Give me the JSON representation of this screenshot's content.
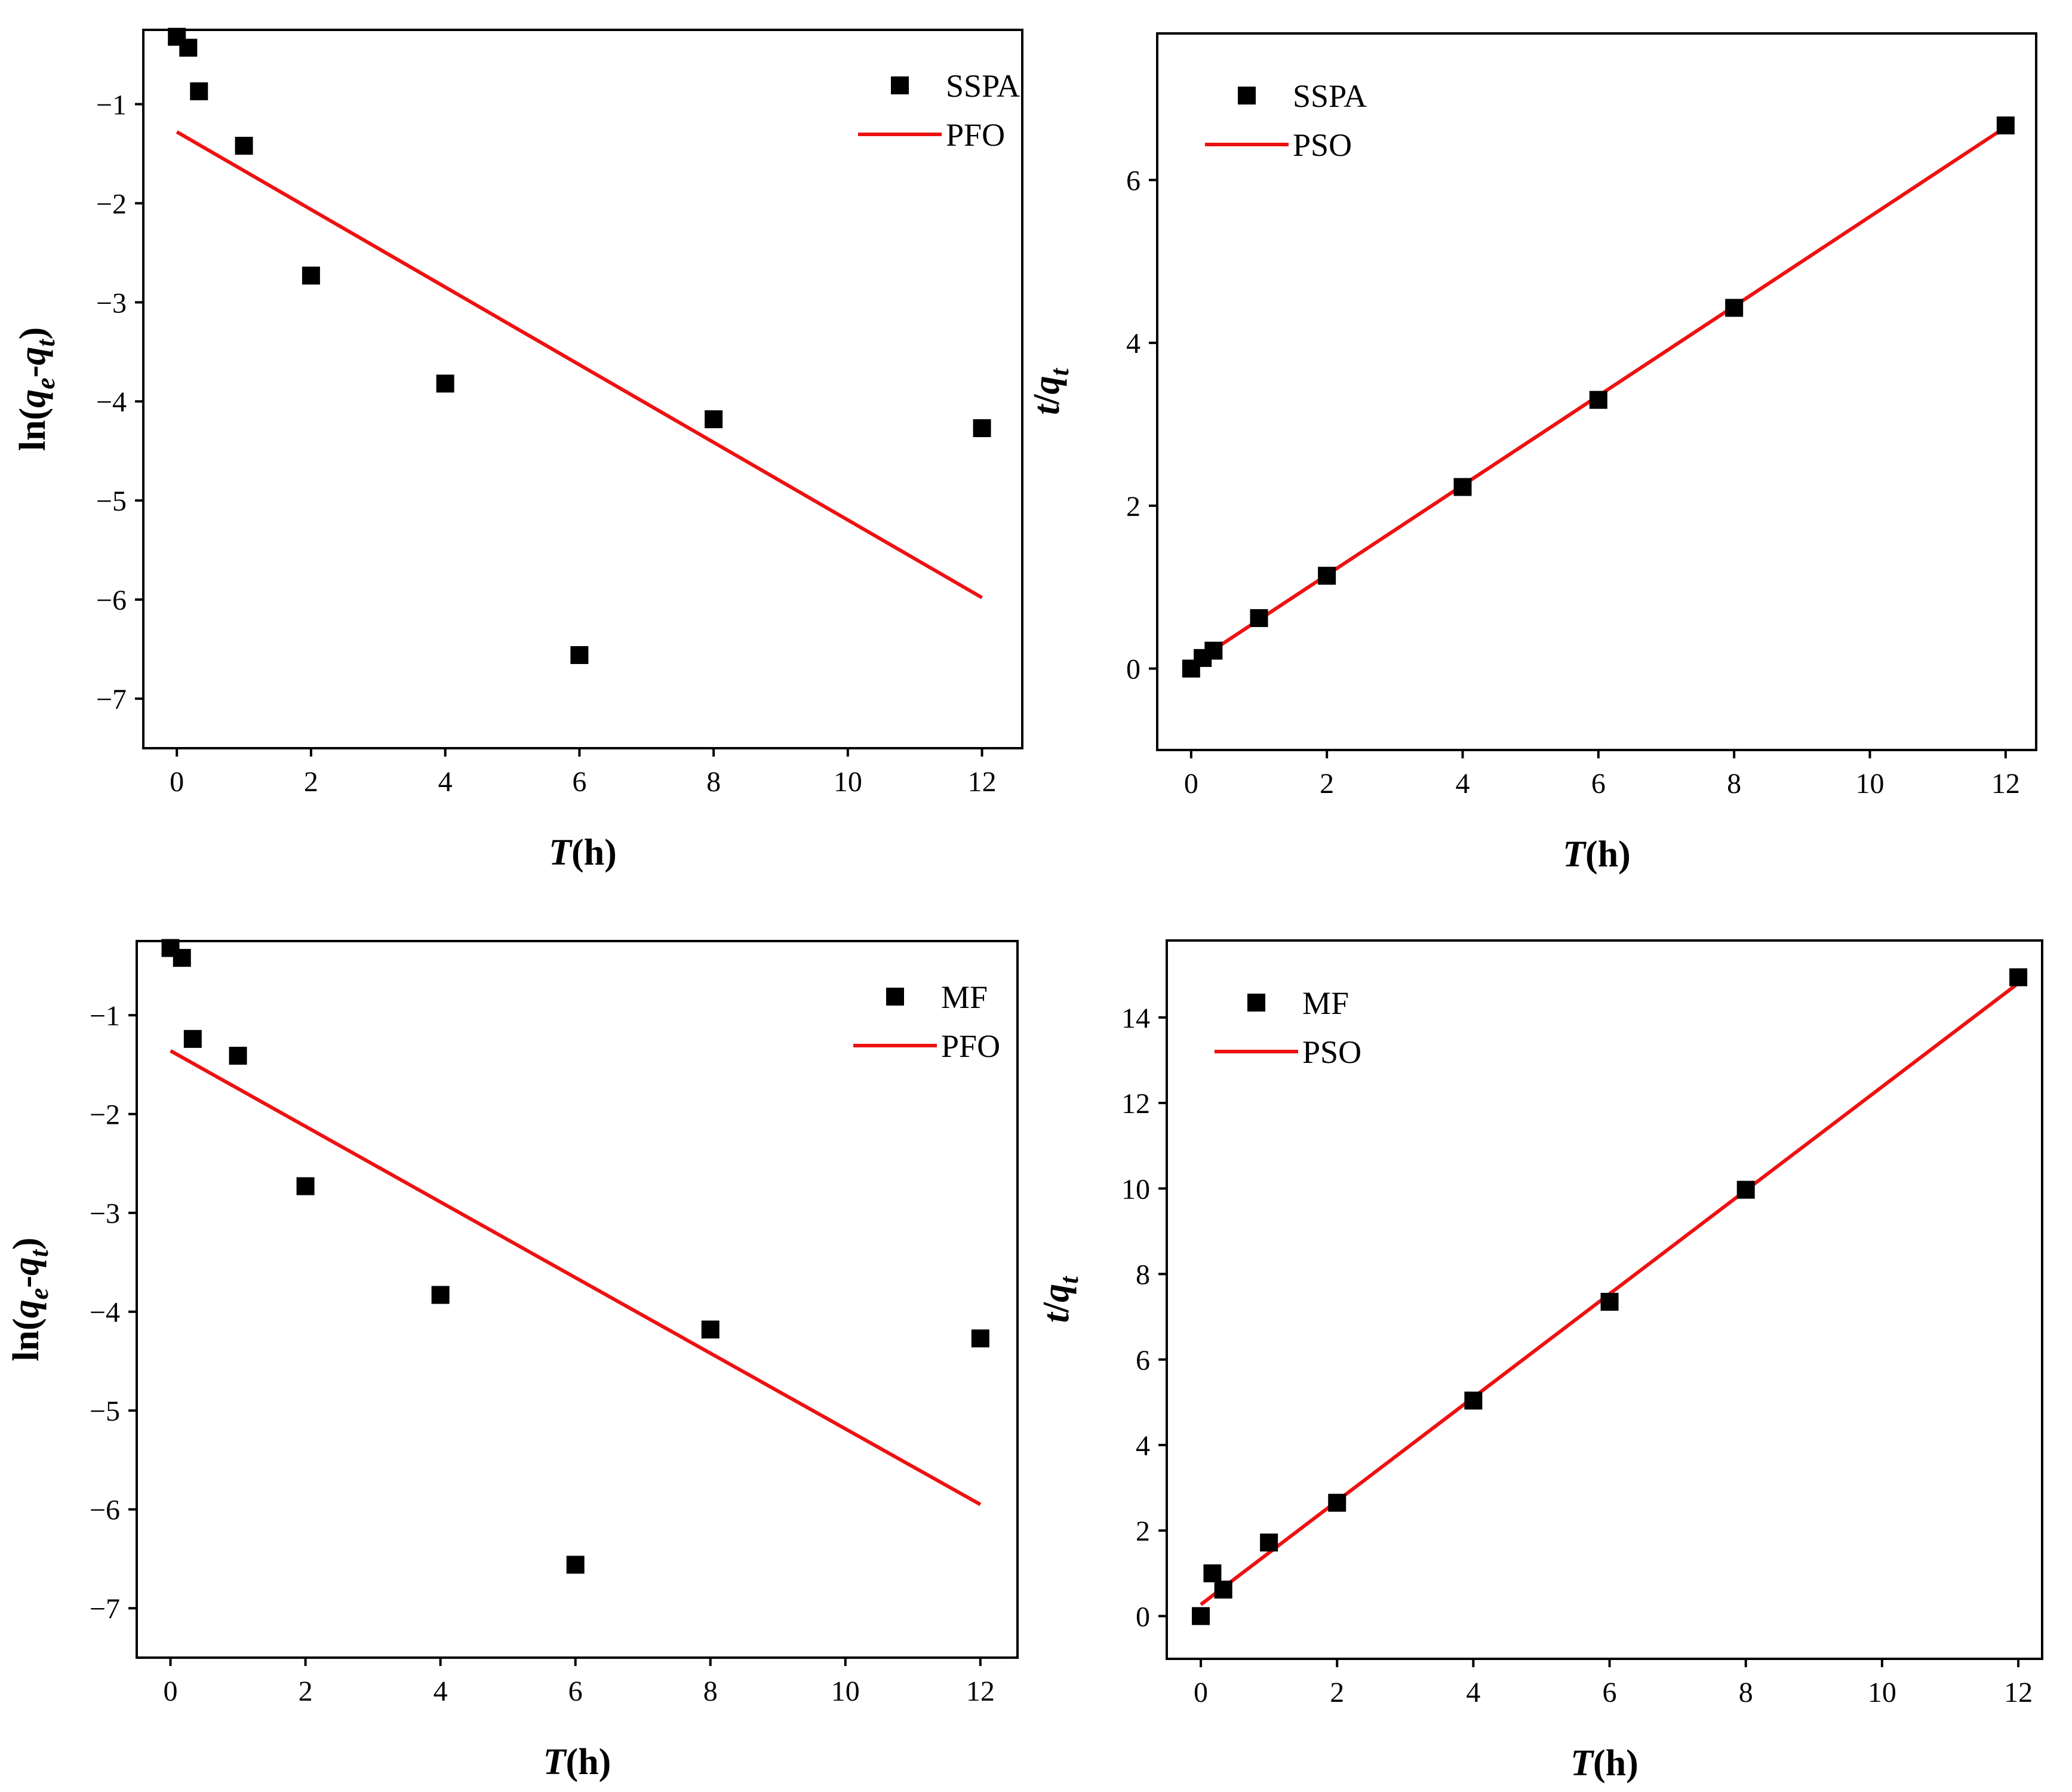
{
  "chart_data": [
    {
      "type": "scatter",
      "position": "top-left",
      "xlabel": {
        "italic": "T",
        "rest": "(h)"
      },
      "ylabel": {
        "prefix": "ln(",
        "q1": "q",
        "s1": "e",
        "dash": "-",
        "q2": "q",
        "s2": "t",
        "suffix": ")"
      },
      "xlim": [
        -0.5,
        12.6
      ],
      "ylim": [
        -7.5,
        -0.25
      ],
      "xticks": [
        0,
        2,
        4,
        6,
        8,
        10,
        12
      ],
      "yticks": [
        -1,
        -2,
        -3,
        -4,
        -5,
        -6,
        -7
      ],
      "ytick_labels": [
        "−1",
        "−2",
        "−3",
        "−4",
        "−5",
        "−6",
        "−7"
      ],
      "points": {
        "name": "SSPA",
        "x": [
          0,
          0.17,
          0.33,
          1,
          2,
          4,
          6,
          8,
          12
        ],
        "y": [
          -0.32,
          -0.43,
          -0.87,
          -1.42,
          -2.73,
          -3.82,
          -6.56,
          -4.18,
          -4.27
        ]
      },
      "fit": {
        "name": "PFO",
        "x": [
          0,
          12
        ],
        "y": [
          -1.28,
          -5.98
        ],
        "color": "#ee1111"
      },
      "legend": {
        "position": "top-right"
      }
    },
    {
      "type": "scatter",
      "position": "top-right",
      "xlabel": {
        "italic": "T",
        "rest": "(h)"
      },
      "ylabel": {
        "q1": "t",
        "slash": "/",
        "q2": "q",
        "s2": "t"
      },
      "xlim": [
        -0.5,
        12.45
      ],
      "ylim": [
        -1.0,
        7.8
      ],
      "xticks": [
        0,
        2,
        4,
        6,
        8,
        10,
        12
      ],
      "yticks": [
        0,
        2,
        4,
        6
      ],
      "ytick_labels": [
        "0",
        "2",
        "4",
        "6"
      ],
      "points": {
        "name": "SSPA",
        "x": [
          0,
          0.17,
          0.33,
          1,
          2,
          4,
          6,
          8,
          12
        ],
        "y": [
          0,
          0.13,
          0.22,
          0.62,
          1.14,
          2.23,
          3.3,
          4.43,
          6.67
        ]
      },
      "fit": {
        "name": "PSO",
        "x": [
          0,
          12
        ],
        "y": [
          0.05,
          6.65
        ],
        "color": "#ee1111"
      },
      "legend": {
        "position": "top-left"
      }
    },
    {
      "type": "scatter",
      "position": "bottom-left",
      "xlabel": {
        "italic": "T",
        "rest": "(h)"
      },
      "ylabel": {
        "prefix": "ln(",
        "q1": "q",
        "s1": "e",
        "dash": "-",
        "q2": "q",
        "s2": "t",
        "suffix": ")"
      },
      "xlim": [
        -0.5,
        12.55
      ],
      "ylim": [
        -7.5,
        -0.25
      ],
      "xticks": [
        0,
        2,
        4,
        6,
        8,
        10,
        12
      ],
      "yticks": [
        -1,
        -2,
        -3,
        -4,
        -5,
        -6,
        -7
      ],
      "ytick_labels": [
        "−1",
        "−2",
        "−3",
        "−4",
        "−5",
        "−6",
        "−7"
      ],
      "points": {
        "name": "MF",
        "x": [
          0,
          0.17,
          0.33,
          1,
          2,
          4,
          6,
          8,
          12
        ],
        "y": [
          -0.32,
          -0.42,
          -1.24,
          -1.41,
          -2.73,
          -3.83,
          -6.56,
          -4.18,
          -4.27
        ]
      },
      "fit": {
        "name": "PFO",
        "x": [
          0,
          12
        ],
        "y": [
          -1.36,
          -5.95
        ],
        "color": "#ee1111"
      },
      "legend": {
        "position": "top-right"
      }
    },
    {
      "type": "scatter",
      "position": "bottom-right",
      "xlabel": {
        "italic": "T",
        "rest": "(h)"
      },
      "ylabel": {
        "q1": "t",
        "slash": "/",
        "q2": "q",
        "s2": "t"
      },
      "xlim": [
        -0.5,
        12.35
      ],
      "ylim": [
        -1.0,
        15.8
      ],
      "xticks": [
        0,
        2,
        4,
        6,
        8,
        10,
        12
      ],
      "yticks": [
        0,
        2,
        4,
        6,
        8,
        10,
        12,
        14
      ],
      "ytick_labels": [
        "0",
        "2",
        "4",
        "6",
        "8",
        "10",
        "12",
        "14"
      ],
      "points": {
        "name": "MF",
        "x": [
          0,
          0.17,
          0.33,
          1,
          2,
          4,
          6,
          8,
          12
        ],
        "y": [
          0,
          1.0,
          0.62,
          1.72,
          2.65,
          5.04,
          7.35,
          9.97,
          14.94
        ]
      },
      "fit": {
        "name": "PSO",
        "x": [
          0,
          12
        ],
        "y": [
          0.27,
          14.8
        ],
        "color": "#ee1111"
      },
      "legend": {
        "position": "top-left"
      }
    }
  ]
}
